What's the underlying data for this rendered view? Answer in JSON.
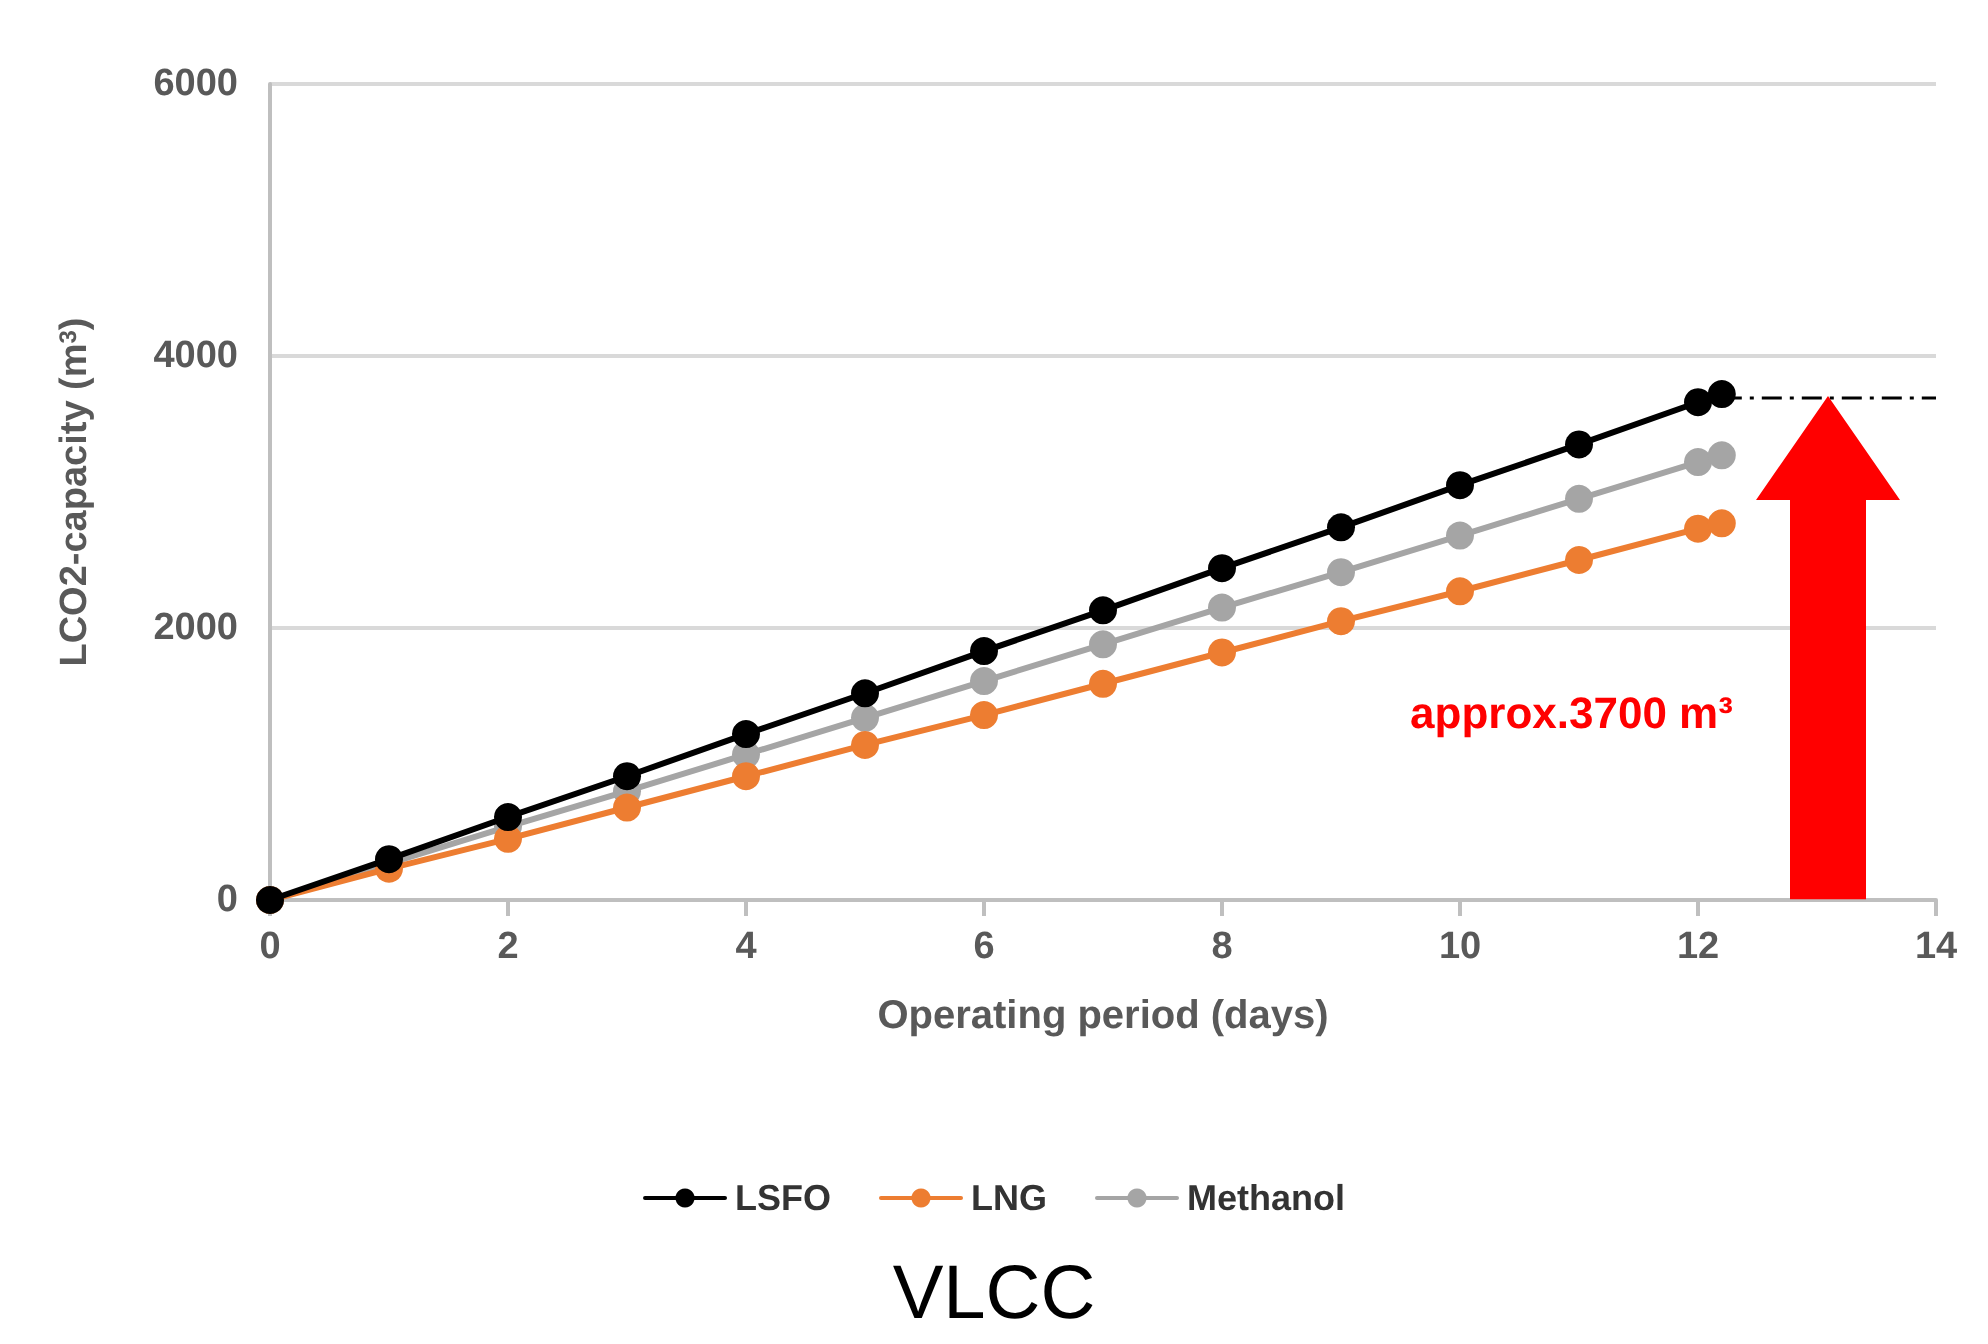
{
  "chart_data": {
    "type": "line",
    "title": "VLCC",
    "xlabel": "Operating period (days)",
    "ylabel": "LCO2-capacity (m$^{3}$)",
    "x": [
      0,
      1,
      2,
      3,
      4,
      5,
      6,
      7,
      8,
      9,
      10,
      11,
      12,
      12.2
    ],
    "series": [
      {
        "name": "LSFO",
        "color": "#000000",
        "values": [
          0,
          300,
          610,
          910,
          1220,
          1520,
          1830,
          2130,
          2440,
          2740,
          3050,
          3350,
          3660,
          3720
        ]
      },
      {
        "name": "LNG",
        "color": "#ed7d31",
        "values": [
          0,
          230,
          450,
          680,
          910,
          1140,
          1360,
          1590,
          1820,
          2050,
          2270,
          2500,
          2730,
          2770
        ]
      },
      {
        "name": "Methanol",
        "color": "#a5a5a5",
        "values": [
          0,
          270,
          540,
          800,
          1070,
          1340,
          1610,
          1880,
          2150,
          2410,
          2680,
          2950,
          3220,
          3270
        ]
      }
    ],
    "xlim": [
      0,
      14
    ],
    "xticks": [
      0,
      2,
      4,
      6,
      8,
      10,
      12,
      14
    ],
    "ylim": [
      0,
      6000
    ],
    "yticks": [
      0,
      2000,
      4000,
      6000
    ],
    "ref_lines": [
      {
        "axis": "y",
        "value": 3700,
        "color": "#000000",
        "line_style": "dashed"
      }
    ],
    "annotations": [
      "approx.3700 m³"
    ],
    "grid": "y",
    "legend": "bottom",
    "marker": "circle",
    "line_style": "solid"
  }
}
